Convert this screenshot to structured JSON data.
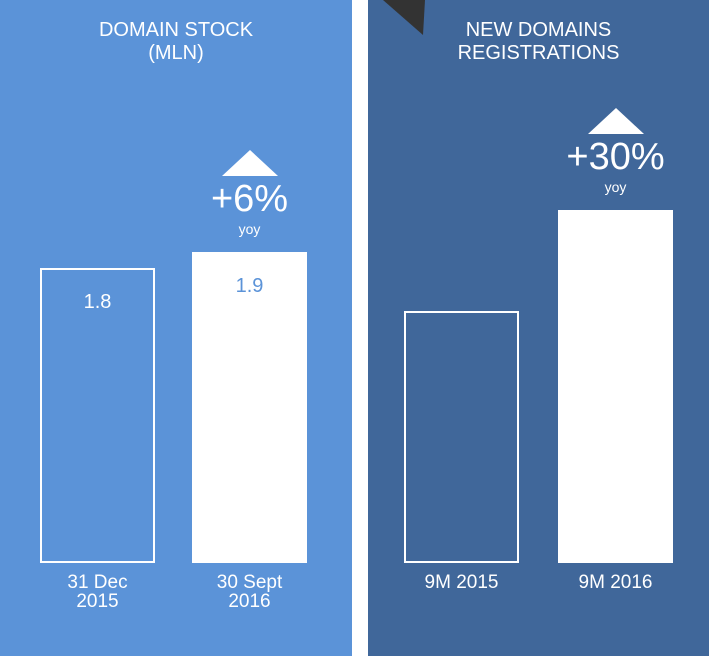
{
  "chart_data": [
    {
      "type": "bar",
      "title": [
        "DOMAIN STOCK",
        "(MLN)"
      ],
      "categories": [
        "31 Dec 2015",
        "30 Sept 2016"
      ],
      "values": [
        1.8,
        1.9
      ],
      "value_labels": [
        "1.8",
        "1.9"
      ],
      "annotation": "+6%",
      "annotation_note": "yoy",
      "background": "#5b93d8",
      "color": "#ffffff"
    },
    {
      "type": "bar",
      "title": [
        "NEW DOMAINS",
        "REGISTRATIONS"
      ],
      "categories": [
        "9M 2015",
        "9M 2016"
      ],
      "values": [
        1.0,
        1.4
      ],
      "annotation": "+30%",
      "annotation_note": "yoy",
      "background": "#40679a",
      "color": "#ffffff"
    }
  ]
}
